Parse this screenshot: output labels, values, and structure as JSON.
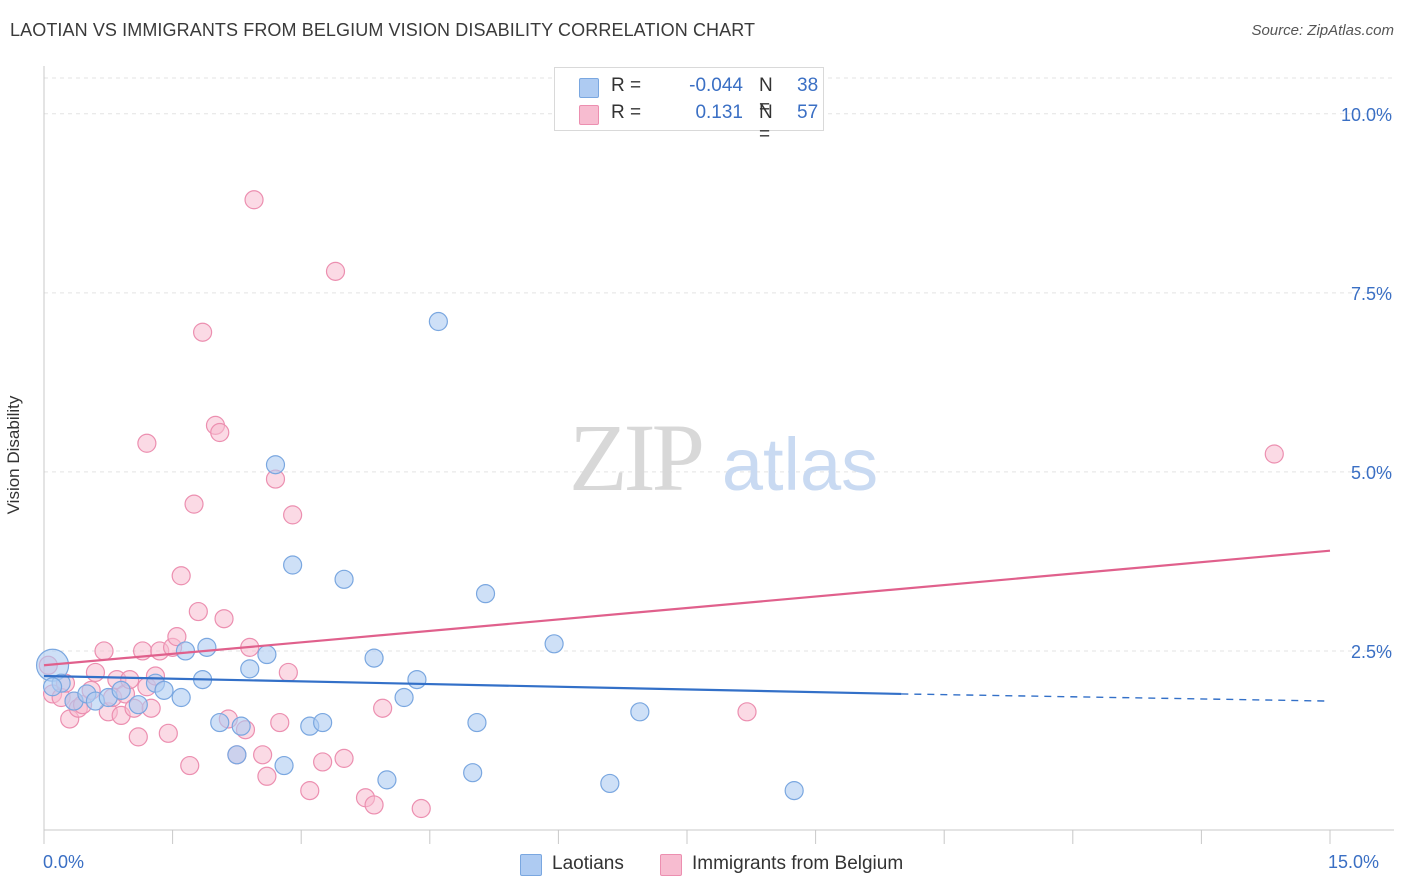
{
  "title": "LAOTIAN VS IMMIGRANTS FROM BELGIUM VISION DISABILITY CORRELATION CHART",
  "source": "Source: ZipAtlas.com",
  "watermark": {
    "zip": "ZIP",
    "atlas": "atlas"
  },
  "legend_top": {
    "rows": [
      {
        "r_label": "R =",
        "r_value": "-0.044",
        "n_label": "N =",
        "n_value": "38"
      },
      {
        "r_label": "R =",
        "r_value": "0.131",
        "n_label": "N =",
        "n_value": "57"
      }
    ]
  },
  "legend_bottom": {
    "laotians": "Laotians",
    "belgium": "Immigrants from Belgium"
  },
  "colors": {
    "blue_fill": "#aecbf2",
    "blue_stroke": "#7aa7e0",
    "blue_line": "#3370c8",
    "pink_fill": "#f7bcd0",
    "pink_stroke": "#ec8fb0",
    "pink_line": "#e0608c",
    "tick_text": "#3a6fc4",
    "grid": "#e3e3e3"
  },
  "chart_data": {
    "type": "scatter",
    "title": "LAOTIAN VS IMMIGRANTS FROM BELGIUM VISION DISABILITY CORRELATION CHART",
    "ylabel": "Vision Disability",
    "xlabel": "",
    "xlim": [
      0,
      15
    ],
    "ylim": [
      0,
      10.5
    ],
    "x_tick_labels": [
      "0.0%",
      "15.0%"
    ],
    "y_ticks": [
      2.5,
      5.0,
      7.5,
      10.0
    ],
    "y_tick_labels": [
      "2.5%",
      "5.0%",
      "7.5%",
      "10.0%"
    ],
    "grid": true,
    "series": [
      {
        "name": "Laotians",
        "color": "#aecbf2",
        "points": [
          [
            0.1,
            2.3
          ],
          [
            0.2,
            2.05
          ],
          [
            0.35,
            1.8
          ],
          [
            0.5,
            1.9
          ],
          [
            0.6,
            1.8
          ],
          [
            0.75,
            1.85
          ],
          [
            0.9,
            1.95
          ],
          [
            1.1,
            1.75
          ],
          [
            1.3,
            2.05
          ],
          [
            1.4,
            1.95
          ],
          [
            1.6,
            1.85
          ],
          [
            1.65,
            2.5
          ],
          [
            1.85,
            2.1
          ],
          [
            1.9,
            2.55
          ],
          [
            2.05,
            1.5
          ],
          [
            2.25,
            1.05
          ],
          [
            2.3,
            1.45
          ],
          [
            2.4,
            2.25
          ],
          [
            2.6,
            2.45
          ],
          [
            2.7,
            5.1
          ],
          [
            2.8,
            0.9
          ],
          [
            2.9,
            3.7
          ],
          [
            3.1,
            1.45
          ],
          [
            3.25,
            1.5
          ],
          [
            3.5,
            3.5
          ],
          [
            3.85,
            2.4
          ],
          [
            4.0,
            0.7
          ],
          [
            4.2,
            1.85
          ],
          [
            4.35,
            2.1
          ],
          [
            4.6,
            7.1
          ],
          [
            5.0,
            0.8
          ],
          [
            5.05,
            1.5
          ],
          [
            5.15,
            3.3
          ],
          [
            5.95,
            2.6
          ],
          [
            6.6,
            0.65
          ],
          [
            6.95,
            1.65
          ],
          [
            8.75,
            0.55
          ],
          [
            0.1,
            2.0
          ]
        ],
        "trend": {
          "x1": 0,
          "y1": 2.15,
          "x2": 10.0,
          "y2": 1.9,
          "dash_to_x": 15.0,
          "dash_to_y": 1.8
        }
      },
      {
        "name": "Immigrants from Belgium",
        "color": "#f7bcd0",
        "points": [
          [
            0.05,
            2.3
          ],
          [
            0.1,
            1.9
          ],
          [
            0.2,
            1.85
          ],
          [
            0.25,
            2.05
          ],
          [
            0.3,
            1.55
          ],
          [
            0.35,
            1.8
          ],
          [
            0.4,
            1.7
          ],
          [
            0.45,
            1.75
          ],
          [
            0.55,
            1.95
          ],
          [
            0.6,
            2.2
          ],
          [
            0.7,
            2.5
          ],
          [
            0.75,
            1.65
          ],
          [
            0.8,
            1.85
          ],
          [
            0.85,
            2.1
          ],
          [
            0.9,
            1.6
          ],
          [
            0.95,
            1.9
          ],
          [
            1.0,
            2.1
          ],
          [
            1.05,
            1.7
          ],
          [
            1.1,
            1.3
          ],
          [
            1.15,
            2.5
          ],
          [
            1.2,
            2.0
          ],
          [
            1.25,
            1.7
          ],
          [
            1.3,
            2.15
          ],
          [
            1.35,
            2.5
          ],
          [
            1.45,
            1.35
          ],
          [
            1.5,
            2.55
          ],
          [
            1.55,
            2.7
          ],
          [
            1.6,
            3.55
          ],
          [
            1.7,
            0.9
          ],
          [
            1.75,
            4.55
          ],
          [
            1.8,
            3.05
          ],
          [
            1.85,
            6.95
          ],
          [
            2.0,
            5.65
          ],
          [
            2.05,
            5.55
          ],
          [
            2.1,
            2.95
          ],
          [
            2.15,
            1.55
          ],
          [
            2.25,
            1.05
          ],
          [
            2.35,
            1.4
          ],
          [
            2.4,
            2.55
          ],
          [
            2.45,
            8.8
          ],
          [
            2.55,
            1.05
          ],
          [
            2.6,
            0.75
          ],
          [
            2.7,
            4.9
          ],
          [
            2.75,
            1.5
          ],
          [
            2.85,
            2.2
          ],
          [
            2.9,
            4.4
          ],
          [
            3.1,
            0.55
          ],
          [
            3.25,
            0.95
          ],
          [
            3.4,
            7.8
          ],
          [
            3.5,
            1.0
          ],
          [
            3.75,
            0.45
          ],
          [
            3.85,
            0.35
          ],
          [
            3.95,
            1.7
          ],
          [
            4.4,
            0.3
          ],
          [
            8.2,
            1.65
          ],
          [
            14.35,
            5.25
          ],
          [
            1.2,
            5.4
          ]
        ],
        "trend": {
          "x1": 0,
          "y1": 2.3,
          "x2": 15.0,
          "y2": 3.9
        }
      }
    ]
  }
}
